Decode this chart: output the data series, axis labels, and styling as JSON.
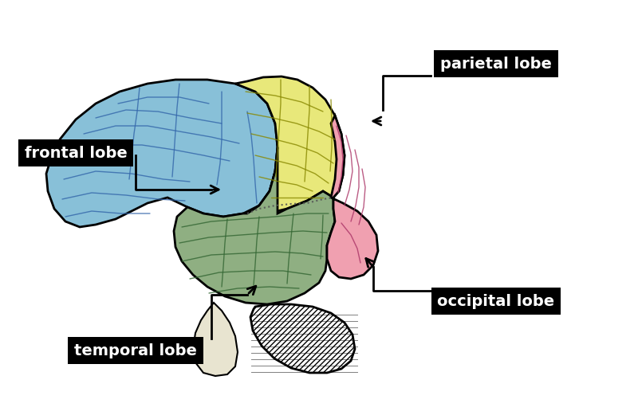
{
  "background_color": "#ffffff",
  "lobes": {
    "frontal": {
      "color": "#88C0D8",
      "label": "frontal lobe"
    },
    "parietal": {
      "color": "#E8E87A",
      "label": "parietal lobe"
    },
    "temporal": {
      "color": "#8FAF82",
      "label": "temporal lobe"
    },
    "occipital": {
      "color": "#F0A0B0",
      "label": "occipital lobe"
    }
  },
  "label_fontsize": 14,
  "label_fontweight": "bold",
  "label_color": "#ffffff",
  "label_bg": "#000000",
  "figsize": [
    8.0,
    5.26
  ],
  "dpi": 100
}
